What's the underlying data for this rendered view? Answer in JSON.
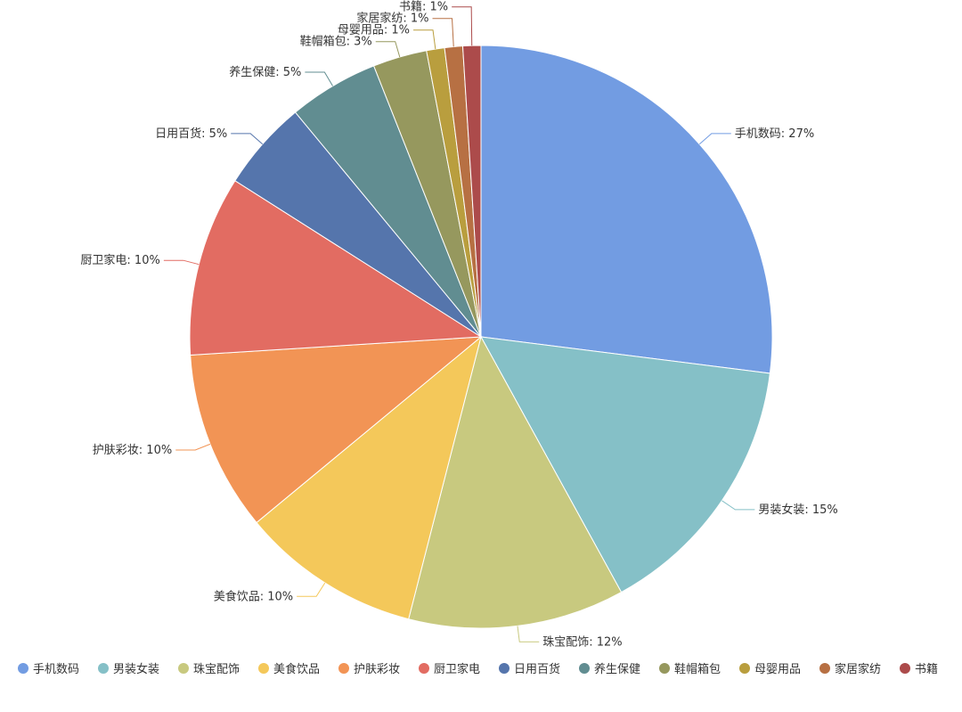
{
  "chart_data": {
    "type": "pie",
    "series": [
      {
        "name": "手机数码",
        "percent": 27,
        "label": "手机数码: 27%",
        "color": "#729CE2"
      },
      {
        "name": "男装女装",
        "percent": 15,
        "label": "男装女装: 15%",
        "color": "#85C0C7"
      },
      {
        "name": "珠宝配饰",
        "percent": 12,
        "label": "珠宝配饰: 12%",
        "color": "#C8C97F"
      },
      {
        "name": "美食饮品",
        "percent": 10,
        "label": "美食饮品: 10%",
        "color": "#F4C85A"
      },
      {
        "name": "护肤彩妆",
        "percent": 10,
        "label": "护肤彩妆: 10%",
        "color": "#F29455"
      },
      {
        "name": "厨卫家电",
        "percent": 10,
        "label": "厨卫家电: 10%",
        "color": "#E26C62"
      },
      {
        "name": "日用百货",
        "percent": 5,
        "label": "日用百货: 5%",
        "color": "#5575AC"
      },
      {
        "name": "养生保健",
        "percent": 5,
        "label": "养生保健: 5%",
        "color": "#618D91"
      },
      {
        "name": "鞋帽箱包",
        "percent": 3,
        "label": "鞋帽箱包: 3%",
        "color": "#96985E"
      },
      {
        "name": "母婴用品",
        "percent": 1,
        "label": "母婴用品: 1%",
        "color": "#B99E3E"
      },
      {
        "name": "家居家纺",
        "percent": 1,
        "label": "家居家纺: 1%",
        "color": "#B77043"
      },
      {
        "name": "书籍",
        "percent": 1,
        "label": "书籍: 1%",
        "color": "#AC4B4B"
      }
    ],
    "legend_position": "bottom"
  }
}
